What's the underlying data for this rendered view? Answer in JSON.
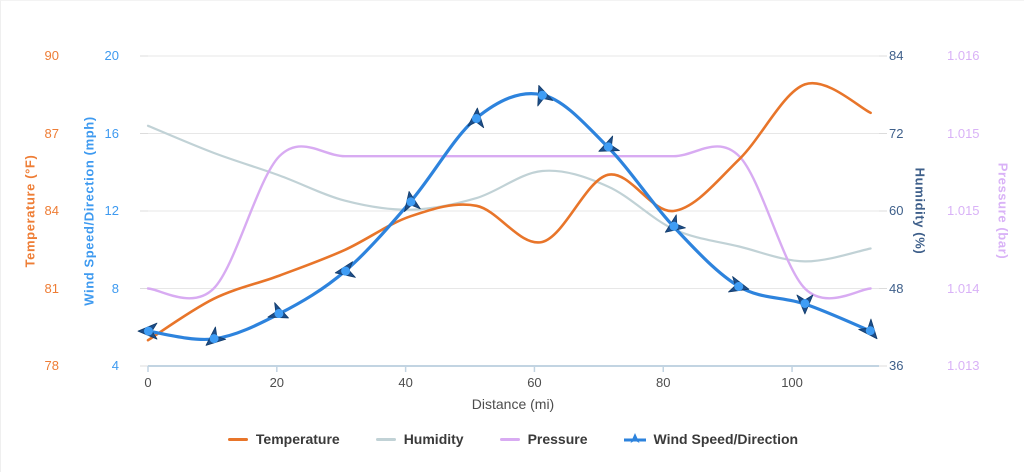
{
  "chart_data": {
    "type": "line",
    "title": "",
    "xlabel": "Distance (mi)",
    "x_tick_labels": [
      "0",
      "20",
      "40",
      "60",
      "80",
      "100"
    ],
    "x_tick_values": [
      0,
      20,
      40,
      60,
      80,
      100
    ],
    "x_range": [
      0,
      113.5
    ],
    "grid": true,
    "legend_position": "bottom",
    "x": [
      0,
      10.2,
      20.4,
      30.6,
      40.8,
      51,
      61.2,
      71.4,
      81.6,
      91.8,
      102,
      112.2
    ],
    "axes": {
      "temperature": {
        "title": "Temperature (°F)",
        "side": "left",
        "color": "#ee7d35",
        "range": [
          78,
          90
        ],
        "tick_labels": [
          "78",
          "81",
          "84",
          "87",
          "90"
        ]
      },
      "wind": {
        "title": "Wind Speed/Direction (mph)",
        "side": "left",
        "color": "#3e9af0",
        "range": [
          4,
          20
        ],
        "tick_labels": [
          "4",
          "8",
          "12",
          "16",
          "20"
        ]
      },
      "humidity": {
        "title": "Humidity (%)",
        "side": "right",
        "color": "#3e5f8a",
        "range": [
          36,
          84
        ],
        "tick_labels": [
          "36",
          "48",
          "60",
          "72",
          "84"
        ]
      },
      "pressure": {
        "title": "Pressure (bar)",
        "side": "right",
        "color": "#d9b2f7",
        "range": [
          1.013,
          1.016
        ],
        "tick_labels": [
          "1.013",
          "1.014",
          "1.015",
          "1.015",
          "1.016"
        ]
      }
    },
    "series": [
      {
        "name": "Temperature",
        "axis": "temperature",
        "color": "#e8752a",
        "values": [
          79.0,
          80.6,
          81.5,
          82.5,
          83.8,
          84.2,
          82.8,
          85.4,
          84.0,
          86.0,
          88.9,
          87.8
        ]
      },
      {
        "name": "Humidity",
        "axis": "humidity",
        "color": "#c1d2d6",
        "values": [
          73.2,
          69.0,
          65.5,
          61.6,
          60.2,
          62.0,
          66.2,
          63.8,
          57.2,
          54.5,
          52.2,
          54.2
        ]
      },
      {
        "name": "Pressure",
        "axis": "pressure",
        "color": "#d8abf2",
        "values": [
          1.01375,
          1.01375,
          1.01503,
          1.01503,
          1.01503,
          1.01503,
          1.01503,
          1.01503,
          1.01503,
          1.01503,
          1.01375,
          1.01375
        ]
      },
      {
        "name": "Wind Speed/Direction",
        "axis": "wind",
        "color": "#2d83dd",
        "values": [
          5.8,
          5.4,
          6.7,
          8.9,
          12.5,
          16.8,
          18.0,
          15.3,
          11.2,
          8.1,
          7.2,
          5.8
        ],
        "marker": {
          "triangle_color": "#1d4e8a",
          "dot_color": "#3f9df5",
          "rotations_deg": [
            270,
            230,
            115,
            260,
            350,
            5,
            340,
            245,
            235,
            105,
            180,
            140
          ]
        }
      }
    ]
  }
}
